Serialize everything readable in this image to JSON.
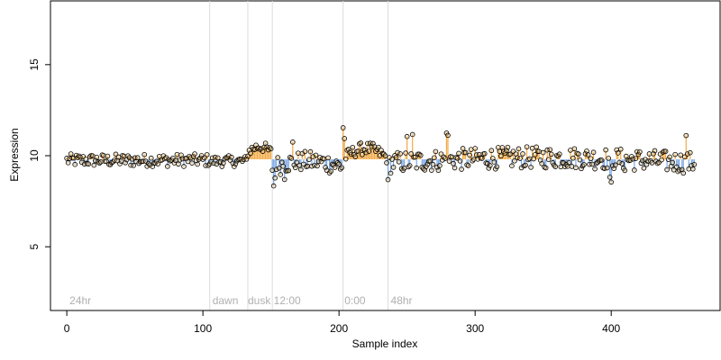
{
  "chart_data": {
    "type": "scatter",
    "xlabel": "Sample index",
    "ylabel": "Expression",
    "xlim": [
      -12,
      480
    ],
    "ylim": [
      1.5,
      18.5
    ],
    "x_ticks": [
      0,
      100,
      200,
      300,
      400
    ],
    "y_ticks": [
      5,
      10,
      15
    ],
    "grid": false,
    "legend": "none",
    "n_points": 462,
    "annotations": [
      {
        "x": 105,
        "label": "",
        "text_x": 2,
        "line": true
      },
      {
        "x": 133,
        "label": "",
        "text_x": 107,
        "line": true
      },
      {
        "x": 151,
        "label": "",
        "text_x": 133,
        "line": true
      },
      {
        "x": 203,
        "label": "",
        "text_x": 152,
        "line": true
      },
      {
        "x": 236,
        "label": "",
        "text_x": 204,
        "line": true
      },
      {
        "x": 236,
        "label": "48hr",
        "text_x": 238,
        "line": false
      }
    ],
    "annotation_labels": [
      "24hr",
      "dawn",
      "dusk",
      "12:00",
      "0:00",
      "48hr"
    ],
    "segments": [
      {
        "start": 0,
        "end": 104,
        "base": 9.75,
        "amp": 0.35,
        "trend": 0.0
      },
      {
        "start": 105,
        "end": 132,
        "base": 9.7,
        "amp": 0.3,
        "trend": 0.0
      },
      {
        "start": 133,
        "end": 150,
        "base": 10.2,
        "amp": 0.3,
        "trend": 0.3
      },
      {
        "start": 151,
        "end": 203,
        "base": 9.4,
        "amp": 0.55,
        "trend": 0.3
      },
      {
        "start": 204,
        "end": 235,
        "base": 9.9,
        "amp": 0.35,
        "trend": 0.5
      },
      {
        "start": 236,
        "end": 461,
        "base": 9.6,
        "amp": 0.6,
        "trend": 0.3
      }
    ],
    "colors": {
      "point_fill": "#e7c07a",
      "point_stroke": "#000000",
      "line_up": "#f0a030",
      "line_down": "#6f9fe0",
      "annotation_line": "#dcdcdc",
      "annotation_text": "#b0b0b0"
    }
  }
}
